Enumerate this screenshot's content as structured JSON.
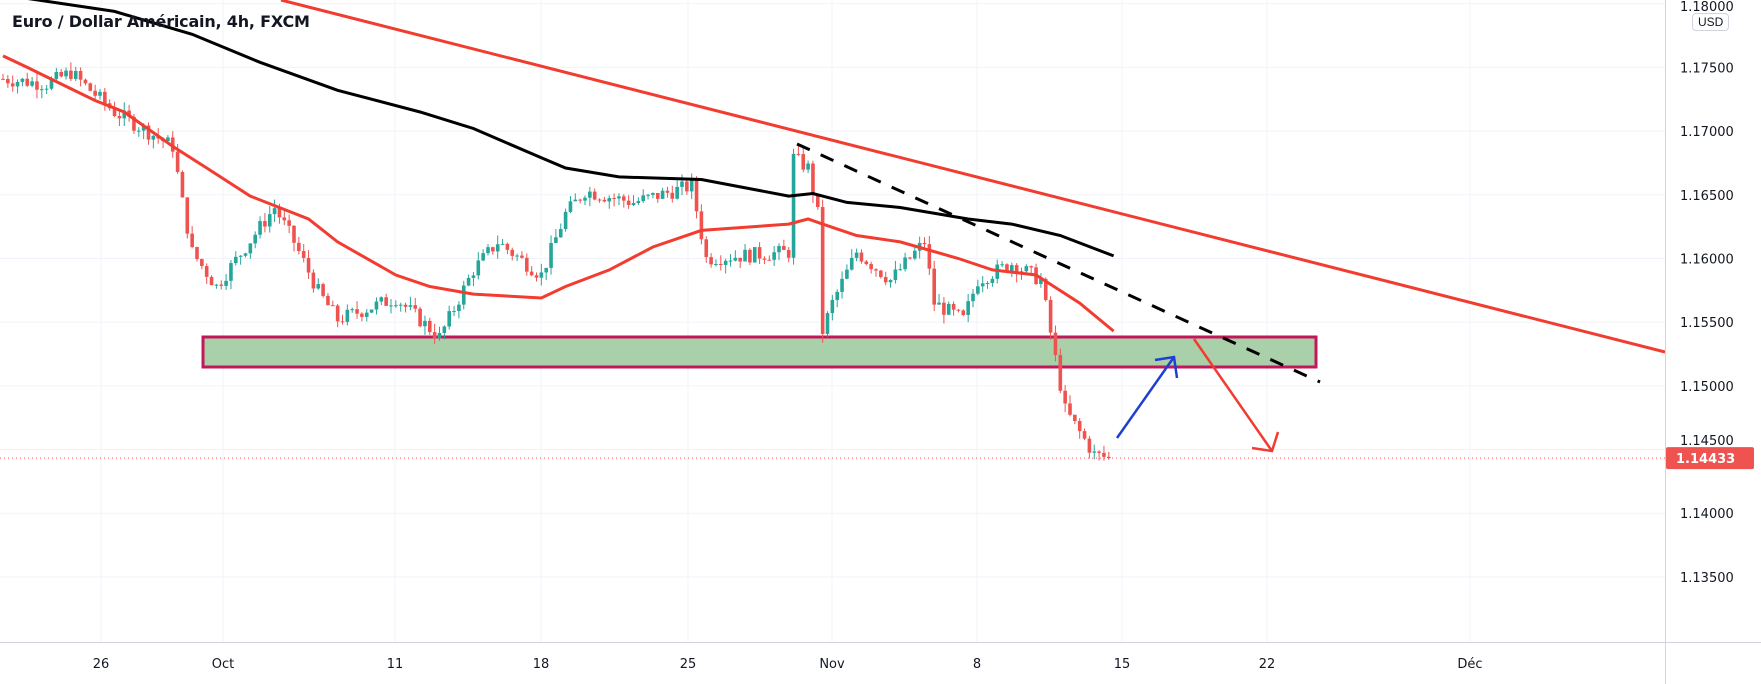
{
  "header": {
    "title": "Euro / Dollar Américain, 4h, FXCM",
    "currency": "USD"
  },
  "colors": {
    "up": "#26a69a",
    "down": "#ef5350",
    "ma_fast": "#f23c2f",
    "ma_slow": "#000000",
    "trendline": "#f23c2f",
    "zone_fill": "#a9d0a9",
    "zone_border": "#c2185b",
    "arrow_up": "#1e3fd0",
    "arrow_down": "#f23c2f",
    "last_price": "#ef5350"
  },
  "chart_data": {
    "type": "candlestick",
    "title": "Euro / Dollar Américain, 4h, FXCM",
    "timeframe": "4h",
    "ylim": [
      1.13,
      1.1805
    ],
    "y_ticks": [
      "1.18000",
      "1.17500",
      "1.17000",
      "1.16500",
      "1.16000",
      "1.15500",
      "1.15000",
      "1.14500",
      "1.14000",
      "1.13500"
    ],
    "y_tick_values": [
      1.18,
      1.175,
      1.17,
      1.165,
      1.16,
      1.155,
      1.15,
      1.145,
      1.14,
      1.135
    ],
    "x_ticks": [
      "26",
      "Oct",
      "11",
      "18",
      "25",
      "Nov",
      "8",
      "15",
      "22",
      "Déc"
    ],
    "last_price": "1.14433",
    "last_price_value": 1.14433,
    "price_path": [
      [
        0,
        1.1741
      ],
      [
        9,
        1.1737
      ],
      [
        14,
        1.1746
      ],
      [
        23,
        1.1715
      ],
      [
        35,
        1.1688
      ],
      [
        37,
        1.1644
      ],
      [
        39,
        1.1605
      ],
      [
        44,
        1.1578
      ],
      [
        56,
        1.164
      ],
      [
        60,
        1.1613
      ],
      [
        65,
        1.1574
      ],
      [
        69,
        1.1552
      ],
      [
        81,
        1.1569
      ],
      [
        90,
        1.1538
      ],
      [
        97,
        1.1591
      ],
      [
        102,
        1.1613
      ],
      [
        111,
        1.1587
      ],
      [
        116,
        1.1635
      ],
      [
        120,
        1.1653
      ],
      [
        130,
        1.1644
      ],
      [
        142,
        1.1657
      ],
      [
        145,
        1.16
      ],
      [
        162,
        1.1605
      ],
      [
        163,
        1.1679
      ],
      [
        166,
        1.1671
      ],
      [
        168,
        1.1635
      ],
      [
        169,
        1.1543
      ],
      [
        171,
        1.1565
      ],
      [
        176,
        1.1605
      ],
      [
        183,
        1.1583
      ],
      [
        190,
        1.1613
      ],
      [
        192,
        1.1565
      ],
      [
        198,
        1.1552
      ],
      [
        201,
        1.1583
      ],
      [
        208,
        1.1596
      ],
      [
        214,
        1.1583
      ],
      [
        217,
        1.1521
      ],
      [
        219,
        1.1481
      ],
      [
        225,
        1.1446
      ],
      [
        228,
        1.14433
      ]
    ],
    "ma_fast": [
      [
        0,
        1.1759
      ],
      [
        5,
        1.175
      ],
      [
        12,
        1.1737
      ],
      [
        19,
        1.1724
      ],
      [
        25,
        1.1715
      ],
      [
        35,
        1.1688
      ],
      [
        42,
        1.1671
      ],
      [
        51,
        1.1649
      ],
      [
        63,
        1.1631
      ],
      [
        69,
        1.1613
      ],
      [
        81,
        1.1587
      ],
      [
        88,
        1.1578
      ],
      [
        97,
        1.1572
      ],
      [
        111,
        1.1569
      ],
      [
        116,
        1.1578
      ],
      [
        125,
        1.1591
      ],
      [
        134,
        1.1609
      ],
      [
        144,
        1.1622
      ],
      [
        162,
        1.1627
      ],
      [
        166,
        1.1631
      ],
      [
        169,
        1.1627
      ],
      [
        176,
        1.1618
      ],
      [
        185,
        1.1613
      ],
      [
        197,
        1.16
      ],
      [
        204,
        1.1591
      ],
      [
        213,
        1.1587
      ],
      [
        222,
        1.1565
      ],
      [
        229,
        1.1543
      ]
    ],
    "ma_slow": [
      [
        0,
        1.1807
      ],
      [
        23,
        1.1794
      ],
      [
        39,
        1.1776
      ],
      [
        53,
        1.1754
      ],
      [
        69,
        1.1732
      ],
      [
        86,
        1.1715
      ],
      [
        97,
        1.1702
      ],
      [
        111,
        1.1679
      ],
      [
        116,
        1.1671
      ],
      [
        127,
        1.1664
      ],
      [
        144,
        1.1662
      ],
      [
        162,
        1.1649
      ],
      [
        167,
        1.1651
      ],
      [
        174,
        1.1644
      ],
      [
        185,
        1.164
      ],
      [
        199,
        1.1631
      ],
      [
        208,
        1.1627
      ],
      [
        218,
        1.1618
      ],
      [
        229,
        1.1602
      ]
    ],
    "support_zone": [
      1.1513,
      1.1537
    ]
  }
}
